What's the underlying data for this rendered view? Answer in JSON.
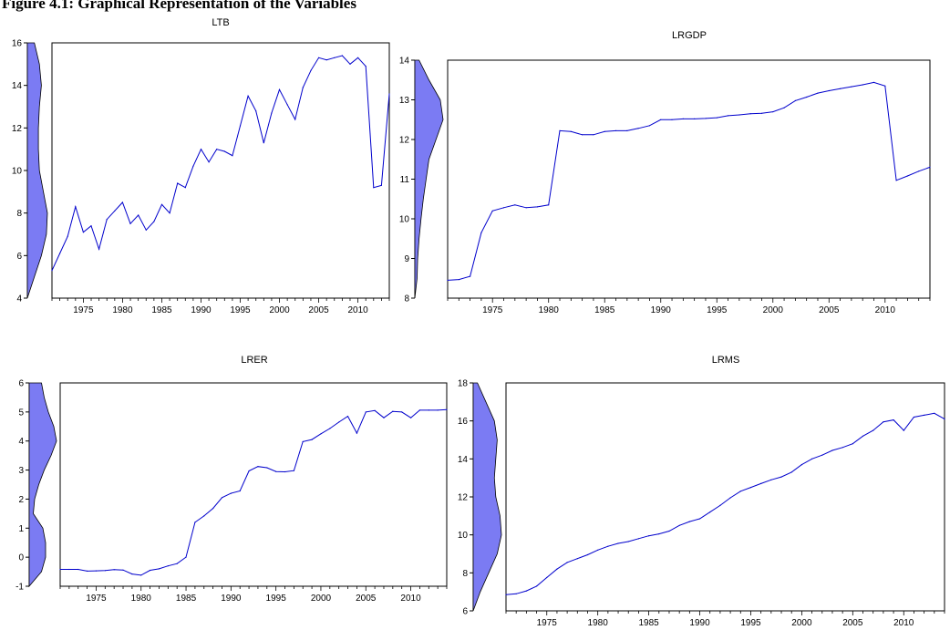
{
  "figure_title": "Figure 4.1: Graphical Representation of the Variables",
  "colors": {
    "line": "#0000cc",
    "density_fill": "#7b7bf3",
    "frame": "#000000"
  },
  "chart_data": [
    {
      "type": "line",
      "title": "LTB",
      "density_margin": true,
      "ylim": [
        4,
        16
      ],
      "yticks": [
        4,
        6,
        8,
        10,
        12,
        14,
        16
      ],
      "xlim": [
        1971,
        2014
      ],
      "xticks": [
        1975,
        1980,
        1985,
        1990,
        1995,
        2000,
        2005,
        2010
      ],
      "x": [
        1971,
        1972,
        1973,
        1974,
        1975,
        1976,
        1977,
        1978,
        1979,
        1980,
        1981,
        1982,
        1983,
        1984,
        1985,
        1986,
        1987,
        1988,
        1989,
        1990,
        1991,
        1992,
        1993,
        1994,
        1995,
        1996,
        1997,
        1998,
        1999,
        2000,
        2001,
        2002,
        2003,
        2004,
        2005,
        2006,
        2007,
        2008,
        2009,
        2010,
        2011,
        2012,
        2013,
        2014
      ],
      "values": [
        5.3,
        6.1,
        6.9,
        8.3,
        7.1,
        7.4,
        6.3,
        7.7,
        8.1,
        8.5,
        7.5,
        7.9,
        7.2,
        7.6,
        8.4,
        8.0,
        9.4,
        9.2,
        10.2,
        11.0,
        10.4,
        11.0,
        10.9,
        10.7,
        12.1,
        13.5,
        12.8,
        11.3,
        12.7,
        13.8,
        13.1,
        12.4,
        13.9,
        14.7,
        15.3,
        15.2,
        15.3,
        15.4,
        15.0,
        15.3,
        14.9,
        9.2,
        9.3,
        13.6
      ],
      "density": {
        "y": [
          4,
          5,
          6,
          7,
          8,
          9,
          10,
          11,
          12,
          13,
          14,
          15,
          16
        ],
        "w": [
          0.0,
          0.35,
          0.7,
          0.95,
          1.0,
          0.8,
          0.6,
          0.55,
          0.55,
          0.6,
          0.7,
          0.6,
          0.35
        ]
      }
    },
    {
      "type": "line",
      "title": "LRGDP",
      "density_margin": true,
      "ylim": [
        8,
        14
      ],
      "yticks": [
        8,
        9,
        10,
        11,
        12,
        13,
        14
      ],
      "xlim": [
        1971,
        2014
      ],
      "xticks": [
        1975,
        1980,
        1985,
        1990,
        1995,
        2000,
        2005,
        2010
      ],
      "x": [
        1971,
        1972,
        1973,
        1974,
        1975,
        1976,
        1977,
        1978,
        1979,
        1980,
        1981,
        1982,
        1983,
        1984,
        1985,
        1986,
        1987,
        1988,
        1989,
        1990,
        1991,
        1992,
        1993,
        1994,
        1995,
        1996,
        1997,
        1998,
        1999,
        2000,
        2001,
        2002,
        2003,
        2004,
        2005,
        2006,
        2007,
        2008,
        2009,
        2010,
        2011,
        2012,
        2013,
        2014
      ],
      "values": [
        8.45,
        8.47,
        8.55,
        9.65,
        10.2,
        10.28,
        10.35,
        10.28,
        10.3,
        10.35,
        12.22,
        12.2,
        12.12,
        12.12,
        12.2,
        12.22,
        12.22,
        12.28,
        12.35,
        12.5,
        12.5,
        12.52,
        12.52,
        12.53,
        12.55,
        12.6,
        12.62,
        12.65,
        12.66,
        12.7,
        12.8,
        12.98,
        13.07,
        13.17,
        13.23,
        13.28,
        13.33,
        13.38,
        13.44,
        13.35,
        10.97,
        11.08,
        11.2,
        11.3
      ],
      "density": {
        "y": [
          8,
          8.5,
          9,
          9.5,
          10,
          10.5,
          11,
          11.5,
          12,
          12.5,
          13,
          13.5,
          14
        ],
        "w": [
          0.0,
          0.08,
          0.1,
          0.15,
          0.22,
          0.3,
          0.4,
          0.5,
          0.75,
          1.0,
          0.9,
          0.5,
          0.15
        ]
      }
    },
    {
      "type": "line",
      "title": "LRER",
      "density_margin": true,
      "ylim": [
        -1,
        6
      ],
      "yticks": [
        -1,
        0,
        1,
        2,
        3,
        4,
        5,
        6
      ],
      "xlim": [
        1971,
        2014
      ],
      "xticks": [
        1975,
        1980,
        1985,
        1990,
        1995,
        2000,
        2005,
        2010
      ],
      "x": [
        1971,
        1972,
        1973,
        1974,
        1975,
        1976,
        1977,
        1978,
        1979,
        1980,
        1981,
        1982,
        1983,
        1984,
        1985,
        1986,
        1987,
        1988,
        1989,
        1990,
        1991,
        1992,
        1993,
        1994,
        1995,
        1996,
        1997,
        1998,
        1999,
        2000,
        2001,
        2002,
        2003,
        2004,
        2005,
        2006,
        2007,
        2008,
        2009,
        2010,
        2011,
        2012,
        2013,
        2014
      ],
      "values": [
        -0.42,
        -0.42,
        -0.42,
        -0.48,
        -0.47,
        -0.46,
        -0.43,
        -0.44,
        -0.58,
        -0.62,
        -0.45,
        -0.4,
        -0.3,
        -0.22,
        0.0,
        1.2,
        1.42,
        1.68,
        2.05,
        2.2,
        2.28,
        2.97,
        3.12,
        3.08,
        2.95,
        2.94,
        2.98,
        3.98,
        4.05,
        4.25,
        4.43,
        4.65,
        4.85,
        4.27,
        5.0,
        5.05,
        4.8,
        5.02,
        5.0,
        4.8,
        5.06,
        5.06,
        5.06,
        5.08
      ],
      "density": {
        "y": [
          -1,
          -0.5,
          0,
          0.5,
          1,
          1.5,
          2,
          2.5,
          3,
          3.5,
          4,
          4.5,
          5,
          5.5,
          6
        ],
        "w": [
          0.0,
          0.45,
          0.6,
          0.6,
          0.5,
          0.15,
          0.2,
          0.35,
          0.55,
          0.8,
          1.0,
          0.9,
          0.7,
          0.55,
          0.45
        ]
      }
    },
    {
      "type": "line",
      "title": "LRMS",
      "density_margin": true,
      "ylim": [
        6,
        18
      ],
      "yticks": [
        6,
        8,
        10,
        12,
        14,
        16,
        18
      ],
      "xlim": [
        1971,
        2014
      ],
      "xticks": [
        1975,
        1980,
        1985,
        1990,
        1995,
        2000,
        2005,
        2010
      ],
      "x": [
        1971,
        1972,
        1973,
        1974,
        1975,
        1976,
        1977,
        1978,
        1979,
        1980,
        1981,
        1982,
        1983,
        1984,
        1985,
        1986,
        1987,
        1988,
        1989,
        1990,
        1991,
        1992,
        1993,
        1994,
        1995,
        1996,
        1997,
        1998,
        1999,
        2000,
        2001,
        2002,
        2003,
        2004,
        2005,
        2006,
        2007,
        2008,
        2009,
        2010,
        2011,
        2012,
        2013,
        2014
      ],
      "values": [
        6.85,
        6.9,
        7.05,
        7.3,
        7.75,
        8.2,
        8.55,
        8.75,
        8.95,
        9.2,
        9.4,
        9.55,
        9.65,
        9.8,
        9.95,
        10.05,
        10.2,
        10.5,
        10.7,
        10.85,
        11.2,
        11.55,
        11.95,
        12.3,
        12.5,
        12.7,
        12.9,
        13.05,
        13.3,
        13.7,
        14.0,
        14.2,
        14.45,
        14.6,
        14.8,
        15.2,
        15.5,
        15.95,
        16.05,
        15.5,
        16.2,
        16.3,
        16.4,
        16.1
      ],
      "density": {
        "y": [
          6,
          7,
          8,
          9,
          10,
          11,
          12,
          13,
          14,
          15,
          16,
          17,
          18
        ],
        "w": [
          0.0,
          0.25,
          0.55,
          0.85,
          1.0,
          0.95,
          0.8,
          0.75,
          0.8,
          0.85,
          0.75,
          0.45,
          0.15
        ]
      }
    }
  ]
}
